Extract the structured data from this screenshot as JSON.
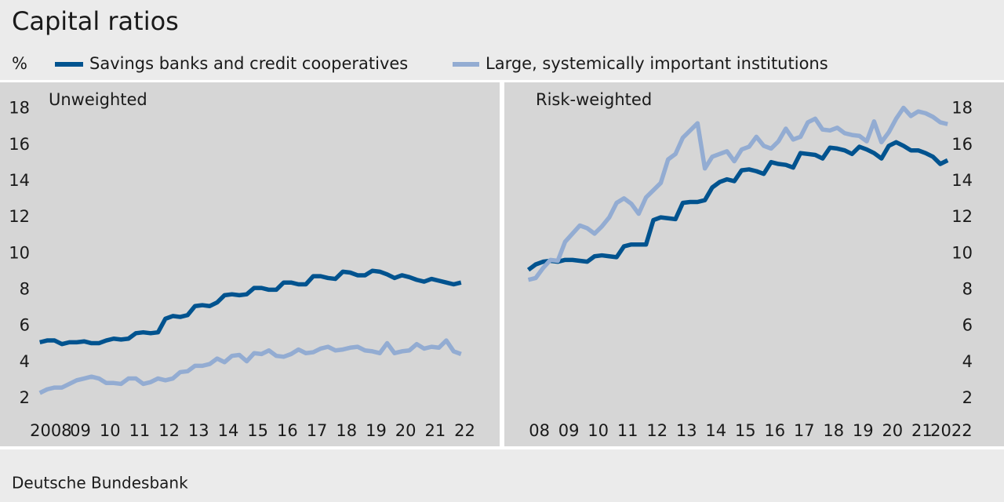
{
  "title": "Capital ratios",
  "unit": "%",
  "source": "Deutsche Bundesbank",
  "chart_data": [
    {
      "type": "line",
      "subtitle": "Unweighted",
      "yaxis_side": "left",
      "x": [
        2008.125,
        2008.375,
        2008.625,
        2008.875,
        2009.125,
        2009.375,
        2009.625,
        2009.875,
        2010.125,
        2010.375,
        2010.625,
        2010.875,
        2011.125,
        2011.375,
        2011.625,
        2011.875,
        2012.125,
        2012.375,
        2012.625,
        2012.875,
        2013.125,
        2013.375,
        2013.625,
        2013.875,
        2014.125,
        2014.375,
        2014.625,
        2014.875,
        2015.125,
        2015.375,
        2015.625,
        2015.875,
        2016.125,
        2016.375,
        2016.625,
        2016.875,
        2017.125,
        2017.375,
        2017.625,
        2017.875,
        2018.125,
        2018.375,
        2018.625,
        2018.875,
        2019.125,
        2019.375,
        2019.625,
        2019.875,
        2020.125,
        2020.375,
        2020.625,
        2020.875,
        2021.125,
        2021.375,
        2021.625,
        2021.875,
        2022.125,
        2022.375
      ],
      "series": [
        {
          "name": "Savings banks and credit cooperatives",
          "color": "#00538f",
          "values": [
            5.1,
            5.2,
            5.2,
            5.0,
            5.1,
            5.1,
            5.15,
            5.05,
            5.05,
            5.2,
            5.3,
            5.25,
            5.3,
            5.6,
            5.65,
            5.6,
            5.65,
            6.4,
            6.55,
            6.5,
            6.6,
            7.1,
            7.15,
            7.1,
            7.3,
            7.7,
            7.75,
            7.7,
            7.75,
            8.1,
            8.1,
            8.0,
            8.0,
            8.4,
            8.4,
            8.3,
            8.3,
            8.75,
            8.75,
            8.65,
            8.6,
            9.0,
            8.95,
            8.8,
            8.8,
            9.05,
            9.0,
            8.85,
            8.65,
            8.8,
            8.7,
            8.55,
            8.45,
            8.6,
            8.5,
            8.4,
            8.3,
            8.4
          ]
        },
        {
          "name": "Large, systemically important institutions",
          "color": "#93acd2",
          "values": [
            2.3,
            2.5,
            2.6,
            2.6,
            2.8,
            3.0,
            3.1,
            3.2,
            3.1,
            2.85,
            2.85,
            2.8,
            3.1,
            3.1,
            2.8,
            2.9,
            3.1,
            3.0,
            3.1,
            3.45,
            3.5,
            3.8,
            3.8,
            3.9,
            4.2,
            4.0,
            4.35,
            4.4,
            4.05,
            4.5,
            4.45,
            4.65,
            4.35,
            4.3,
            4.45,
            4.7,
            4.5,
            4.55,
            4.75,
            4.85,
            4.65,
            4.7,
            4.8,
            4.85,
            4.65,
            4.6,
            4.5,
            5.05,
            4.5,
            4.6,
            4.65,
            5.0,
            4.75,
            4.85,
            4.8,
            5.2,
            4.6,
            4.45
          ]
        }
      ],
      "xlim": [
        2006.78,
        2023.68
      ],
      "xticks": [
        {
          "value": 2008.5,
          "label": "2008"
        },
        {
          "value": 2009.5,
          "label": "09"
        },
        {
          "value": 2010.5,
          "label": "10"
        },
        {
          "value": 2011.5,
          "label": "11"
        },
        {
          "value": 2012.5,
          "label": "12"
        },
        {
          "value": 2013.5,
          "label": "13"
        },
        {
          "value": 2014.5,
          "label": "14"
        },
        {
          "value": 2015.5,
          "label": "15"
        },
        {
          "value": 2016.5,
          "label": "16"
        },
        {
          "value": 2017.5,
          "label": "17"
        },
        {
          "value": 2018.5,
          "label": "18"
        },
        {
          "value": 2019.5,
          "label": "19"
        },
        {
          "value": 2020.5,
          "label": "20"
        },
        {
          "value": 2021.5,
          "label": "21"
        },
        {
          "value": 2022.5,
          "label": "22"
        }
      ],
      "ylim": [
        1,
        19.5
      ],
      "yticks": [
        2,
        4,
        6,
        8,
        10,
        12,
        14,
        16,
        18
      ]
    },
    {
      "type": "line",
      "subtitle": "Risk-weighted",
      "yaxis_side": "right",
      "x": [
        2008.125,
        2008.375,
        2008.625,
        2008.875,
        2009.125,
        2009.375,
        2009.625,
        2009.875,
        2010.125,
        2010.375,
        2010.625,
        2010.875,
        2011.125,
        2011.375,
        2011.625,
        2011.875,
        2012.125,
        2012.375,
        2012.625,
        2012.875,
        2013.125,
        2013.375,
        2013.625,
        2013.875,
        2014.125,
        2014.375,
        2014.625,
        2014.875,
        2015.125,
        2015.375,
        2015.625,
        2015.875,
        2016.125,
        2016.375,
        2016.625,
        2016.875,
        2017.125,
        2017.375,
        2017.625,
        2017.875,
        2018.125,
        2018.375,
        2018.625,
        2018.875,
        2019.125,
        2019.375,
        2019.625,
        2019.875,
        2020.125,
        2020.375,
        2020.625,
        2020.875,
        2021.125,
        2021.375,
        2021.625,
        2021.875,
        2022.125,
        2022.375
      ],
      "series": [
        {
          "name": "Savings banks and credit cooperatives",
          "color": "#00538f",
          "values": [
            9.1,
            9.4,
            9.55,
            9.6,
            9.55,
            9.65,
            9.65,
            9.6,
            9.55,
            9.85,
            9.9,
            9.85,
            9.8,
            10.4,
            10.5,
            10.5,
            10.5,
            11.85,
            12.0,
            11.95,
            11.9,
            12.8,
            12.85,
            12.85,
            12.95,
            13.65,
            13.95,
            14.1,
            14.0,
            14.6,
            14.65,
            14.55,
            14.4,
            15.05,
            14.95,
            14.9,
            14.75,
            15.55,
            15.5,
            15.45,
            15.25,
            15.85,
            15.8,
            15.7,
            15.5,
            15.9,
            15.75,
            15.55,
            15.25,
            15.95,
            16.15,
            15.95,
            15.7,
            15.7,
            15.55,
            15.35,
            14.95,
            15.15
          ]
        },
        {
          "name": "Large, systemically important institutions",
          "color": "#93acd2",
          "values": [
            8.55,
            8.65,
            9.2,
            9.65,
            9.6,
            10.65,
            11.1,
            11.55,
            11.4,
            11.1,
            11.5,
            12.0,
            12.8,
            13.05,
            12.75,
            12.2,
            13.1,
            13.5,
            13.9,
            15.2,
            15.5,
            16.4,
            16.8,
            17.2,
            14.7,
            15.35,
            15.5,
            15.65,
            15.1,
            15.75,
            15.9,
            16.45,
            15.95,
            15.8,
            16.2,
            16.9,
            16.3,
            16.45,
            17.25,
            17.45,
            16.85,
            16.8,
            16.95,
            16.65,
            16.55,
            16.5,
            16.2,
            17.3,
            16.15,
            16.7,
            17.45,
            18.05,
            17.6,
            17.85,
            17.75,
            17.55,
            17.25,
            17.15
          ]
        }
      ],
      "xlim": [
        2007.31,
        2024.29
      ],
      "xticks": [
        {
          "value": 2008.5,
          "label": "08"
        },
        {
          "value": 2009.5,
          "label": "09"
        },
        {
          "value": 2010.5,
          "label": "10"
        },
        {
          "value": 2011.5,
          "label": "11"
        },
        {
          "value": 2012.5,
          "label": "12"
        },
        {
          "value": 2013.5,
          "label": "13"
        },
        {
          "value": 2014.5,
          "label": "14"
        },
        {
          "value": 2015.5,
          "label": "15"
        },
        {
          "value": 2016.5,
          "label": "16"
        },
        {
          "value": 2017.5,
          "label": "17"
        },
        {
          "value": 2018.5,
          "label": "18"
        },
        {
          "value": 2019.5,
          "label": "19"
        },
        {
          "value": 2020.5,
          "label": "20"
        },
        {
          "value": 2021.5,
          "label": "21"
        },
        {
          "value": 2022.5,
          "label": "2022"
        }
      ],
      "ylim": [
        1,
        19.5
      ],
      "yticks": [
        2,
        4,
        6,
        8,
        10,
        12,
        14,
        16,
        18
      ]
    }
  ]
}
